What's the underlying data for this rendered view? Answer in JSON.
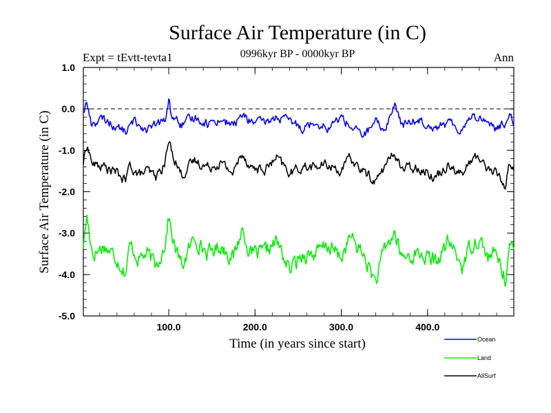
{
  "chart_data": {
    "type": "line",
    "title": "Surface Air Temperature (in C)",
    "subtitle": "0996kyr BP - 0000kyr BP",
    "experiment_label": "Expt = tEvtt-tevta1",
    "season_label": "Ann",
    "xlabel": "Time (in years since start)",
    "ylabel": "Surface Air Temperature (in C)",
    "xlim": [
      1,
      500
    ],
    "ylim": [
      -5.0,
      1.0
    ],
    "x_ticks": [
      100,
      200,
      300,
      400
    ],
    "x_tick_labels": [
      "100.0",
      "200.0",
      "300.0",
      "400.0"
    ],
    "y_ticks": [
      1.0,
      0.0,
      -1.0,
      -2.0,
      -3.0,
      -4.0,
      -5.0
    ],
    "y_tick_labels": [
      "1.0",
      "0.0",
      "-1.0",
      "-2.0",
      "-3.0",
      "-4.0",
      "-5.0"
    ],
    "zero_line": 0.0,
    "legend_position": "bottom-right",
    "series": [
      {
        "name": "Ocean",
        "color": "#0000ee",
        "key_points": [
          [
            1,
            -0.05
          ],
          [
            5,
            0.15
          ],
          [
            10,
            -0.35
          ],
          [
            25,
            -0.25
          ],
          [
            40,
            -0.45
          ],
          [
            50,
            -0.55
          ],
          [
            60,
            -0.3
          ],
          [
            75,
            -0.5
          ],
          [
            90,
            -0.35
          ],
          [
            97,
            -0.25
          ],
          [
            100,
            0.25
          ],
          [
            103,
            -0.15
          ],
          [
            115,
            -0.4
          ],
          [
            130,
            -0.2
          ],
          [
            145,
            -0.35
          ],
          [
            160,
            -0.25
          ],
          [
            175,
            -0.4
          ],
          [
            185,
            -0.15
          ],
          [
            195,
            -0.3
          ],
          [
            210,
            -0.35
          ],
          [
            225,
            -0.2
          ],
          [
            240,
            -0.3
          ],
          [
            255,
            -0.45
          ],
          [
            270,
            -0.3
          ],
          [
            285,
            -0.45
          ],
          [
            300,
            -0.2
          ],
          [
            310,
            -0.4
          ],
          [
            325,
            -0.65
          ],
          [
            340,
            -0.35
          ],
          [
            350,
            -0.5
          ],
          [
            362,
            0.1
          ],
          [
            370,
            -0.4
          ],
          [
            390,
            -0.25
          ],
          [
            410,
            -0.45
          ],
          [
            425,
            -0.35
          ],
          [
            440,
            -0.5
          ],
          [
            450,
            -0.15
          ],
          [
            460,
            -0.2
          ],
          [
            470,
            -0.3
          ],
          [
            480,
            -0.5
          ],
          [
            490,
            -0.35
          ],
          [
            495,
            -0.05
          ],
          [
            500,
            -0.3
          ]
        ],
        "noise": 0.09
      },
      {
        "name": "Land",
        "color": "#00ee00",
        "key_points": [
          [
            1,
            -3.3
          ],
          [
            5,
            -2.6
          ],
          [
            12,
            -3.5
          ],
          [
            25,
            -3.3
          ],
          [
            40,
            -3.6
          ],
          [
            50,
            -3.95
          ],
          [
            55,
            -3.3
          ],
          [
            65,
            -3.6
          ],
          [
            75,
            -3.5
          ],
          [
            85,
            -3.8
          ],
          [
            95,
            -3.3
          ],
          [
            100,
            -2.6
          ],
          [
            105,
            -3.2
          ],
          [
            115,
            -3.8
          ],
          [
            130,
            -3.1
          ],
          [
            145,
            -3.5
          ],
          [
            160,
            -3.3
          ],
          [
            175,
            -3.6
          ],
          [
            185,
            -2.9
          ],
          [
            195,
            -3.5
          ],
          [
            210,
            -3.5
          ],
          [
            225,
            -3.2
          ],
          [
            240,
            -3.9
          ],
          [
            255,
            -3.5
          ],
          [
            270,
            -3.5
          ],
          [
            285,
            -3.3
          ],
          [
            300,
            -3.6
          ],
          [
            310,
            -3.1
          ],
          [
            325,
            -3.5
          ],
          [
            340,
            -4.2
          ],
          [
            350,
            -3.4
          ],
          [
            362,
            -3.0
          ],
          [
            370,
            -3.6
          ],
          [
            390,
            -3.5
          ],
          [
            410,
            -3.7
          ],
          [
            425,
            -3.2
          ],
          [
            440,
            -3.8
          ],
          [
            450,
            -3.3
          ],
          [
            460,
            -3.1
          ],
          [
            470,
            -3.6
          ],
          [
            480,
            -3.5
          ],
          [
            490,
            -4.1
          ],
          [
            495,
            -3.3
          ],
          [
            500,
            -3.5
          ]
        ],
        "noise": 0.16
      },
      {
        "name": "AllSurf",
        "color": "#000000",
        "key_points": [
          [
            1,
            -1.3
          ],
          [
            5,
            -0.85
          ],
          [
            12,
            -1.35
          ],
          [
            25,
            -1.4
          ],
          [
            40,
            -1.55
          ],
          [
            50,
            -1.75
          ],
          [
            55,
            -1.35
          ],
          [
            65,
            -1.6
          ],
          [
            75,
            -1.5
          ],
          [
            85,
            -1.65
          ],
          [
            95,
            -1.35
          ],
          [
            100,
            -0.8
          ],
          [
            105,
            -1.1
          ],
          [
            115,
            -1.6
          ],
          [
            130,
            -1.25
          ],
          [
            145,
            -1.4
          ],
          [
            160,
            -1.3
          ],
          [
            175,
            -1.55
          ],
          [
            185,
            -1.05
          ],
          [
            195,
            -1.4
          ],
          [
            210,
            -1.5
          ],
          [
            225,
            -1.2
          ],
          [
            240,
            -1.55
          ],
          [
            255,
            -1.4
          ],
          [
            270,
            -1.4
          ],
          [
            285,
            -1.35
          ],
          [
            300,
            -1.5
          ],
          [
            310,
            -1.2
          ],
          [
            325,
            -1.5
          ],
          [
            340,
            -1.75
          ],
          [
            350,
            -1.4
          ],
          [
            362,
            -1.05
          ],
          [
            370,
            -1.45
          ],
          [
            390,
            -1.4
          ],
          [
            410,
            -1.65
          ],
          [
            425,
            -1.3
          ],
          [
            440,
            -1.6
          ],
          [
            450,
            -1.25
          ],
          [
            460,
            -1.15
          ],
          [
            470,
            -1.45
          ],
          [
            480,
            -1.55
          ],
          [
            490,
            -1.85
          ],
          [
            495,
            -1.3
          ],
          [
            500,
            -1.5
          ]
        ],
        "noise": 0.1
      }
    ]
  }
}
